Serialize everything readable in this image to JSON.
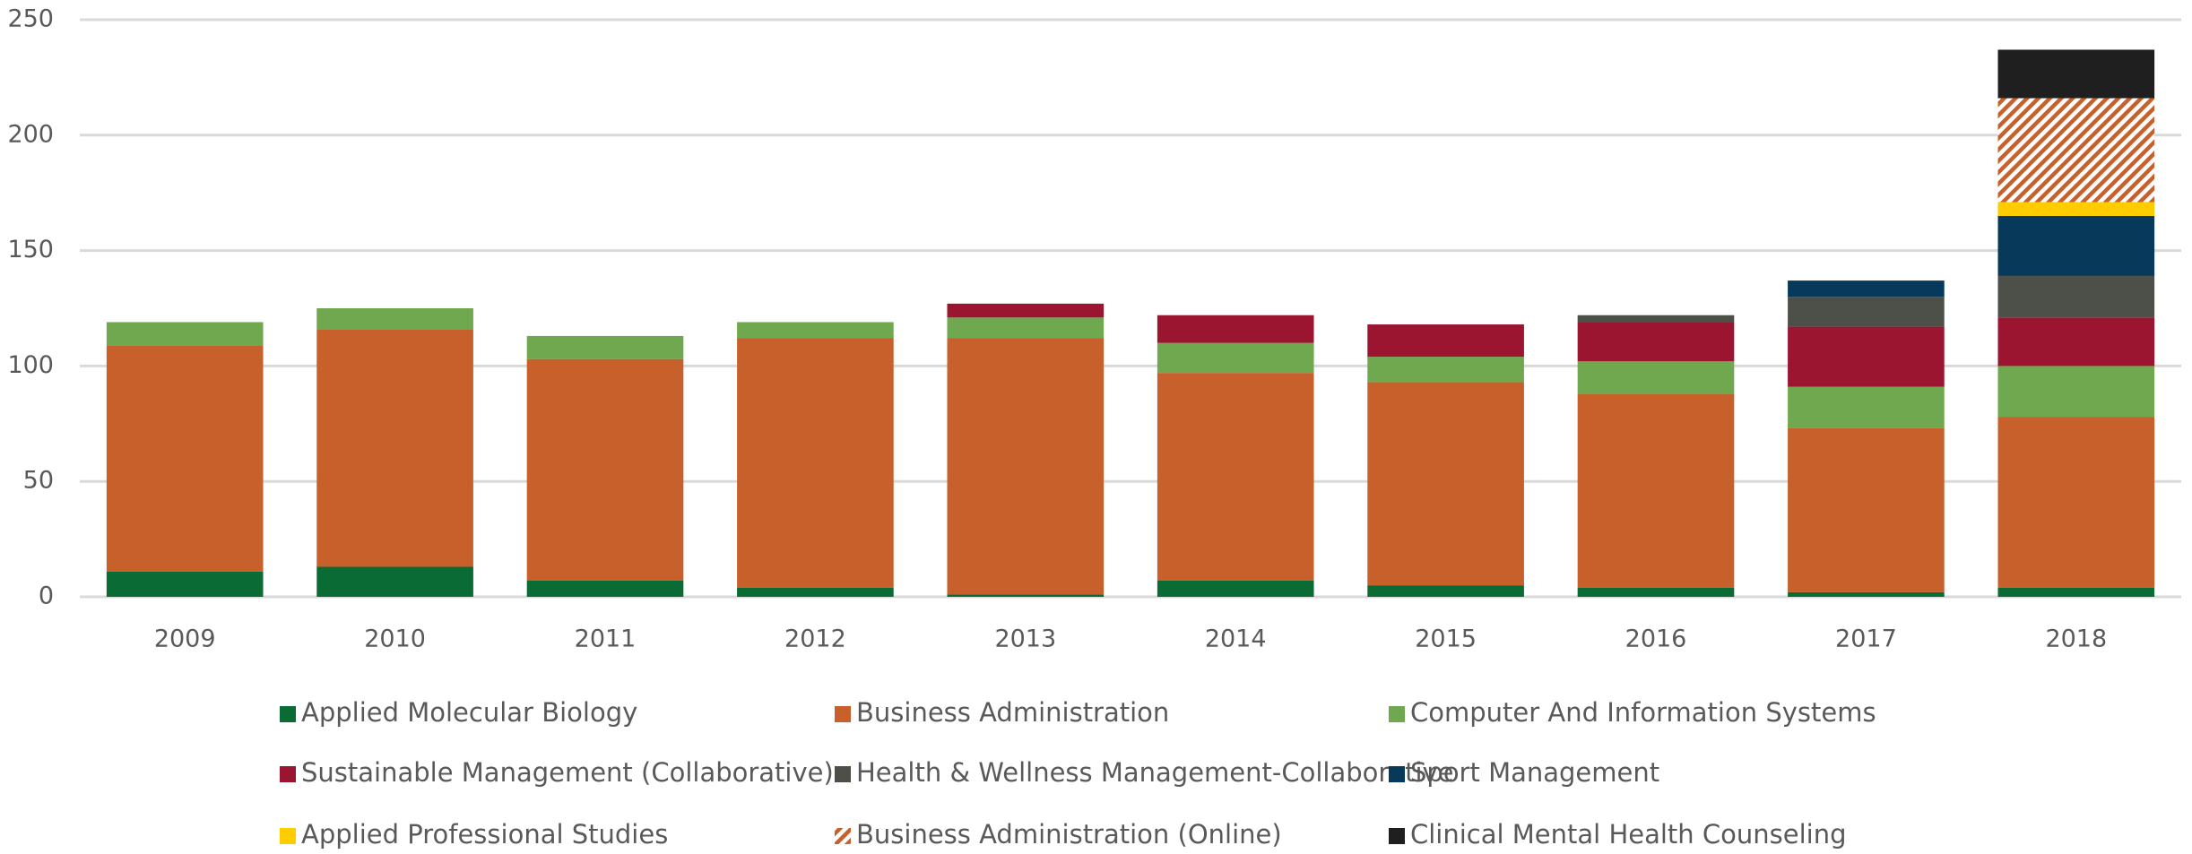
{
  "chart_data": {
    "type": "stacked_bar",
    "categories": [
      "2009",
      "2010",
      "2011",
      "2012",
      "2013",
      "2014",
      "2015",
      "2016",
      "2017",
      "2018"
    ],
    "ylim": [
      0,
      250
    ],
    "yticks": [
      0,
      50,
      100,
      150,
      200,
      250
    ],
    "grid": true,
    "legend": "bottom",
    "series": [
      {
        "name": "Applied Molecular Biology",
        "color": "#0b6b35",
        "values": [
          11,
          13,
          7,
          4,
          1,
          7,
          5,
          4,
          2,
          4
        ]
      },
      {
        "name": "Business Administration",
        "color": "#c8602c",
        "values": [
          98,
          103,
          96,
          108,
          111,
          90,
          88,
          84,
          71,
          74
        ]
      },
      {
        "name": "Computer And Information Systems",
        "color": "#6fa84f",
        "values": [
          10,
          9,
          10,
          7,
          9,
          13,
          11,
          14,
          18,
          22
        ]
      },
      {
        "name": "Sustainable Management (Collaborative)",
        "color": "#9b1530",
        "values": [
          null,
          null,
          null,
          null,
          6,
          12,
          14,
          17,
          26,
          21
        ]
      },
      {
        "name": "Health & Wellness Management-Collaborative",
        "color": "#4d5049",
        "values": [
          null,
          null,
          null,
          null,
          null,
          null,
          null,
          3,
          13,
          18
        ]
      },
      {
        "name": "Sport Management",
        "color": "#073a5a",
        "values": [
          null,
          null,
          null,
          null,
          null,
          null,
          null,
          null,
          7,
          26
        ]
      },
      {
        "name": "Applied Professional Studies",
        "color": "#ffcc00",
        "values": [
          null,
          null,
          null,
          null,
          null,
          null,
          null,
          null,
          null,
          6
        ]
      },
      {
        "name": "Business Administration (Online)",
        "color": "#c8602c",
        "hatch": true,
        "values": [
          null,
          null,
          null,
          null,
          null,
          null,
          null,
          null,
          null,
          45
        ]
      },
      {
        "name": "Clinical Mental Health Counseling",
        "color": "#1f1f1f",
        "values": [
          null,
          null,
          null,
          null,
          null,
          null,
          null,
          null,
          null,
          21
        ]
      }
    ]
  }
}
